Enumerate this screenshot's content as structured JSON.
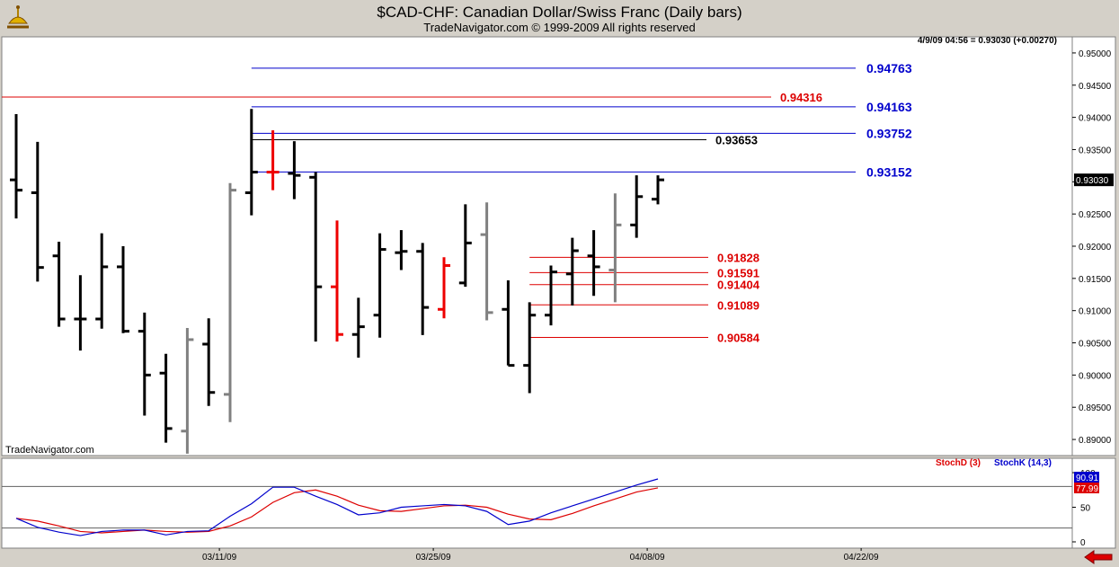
{
  "header": {
    "title": "$CAD-CHF:  Canadian Dollar/Swiss Franc  (Daily bars)",
    "subtitle": "TradeNavigator.com © 1999-2009 All rights reserved",
    "logo_icon": "sextant-icon"
  },
  "watermark": "TradeNavigator.com",
  "quote_line": "4/9/09 04:56 = 0.93030 (+0.00270)",
  "colors": {
    "background": "#d4d0c8",
    "panel": "#ffffff",
    "up_bar": "#000000",
    "red_bar": "#ee0000",
    "gray_bar": "#808080",
    "blue_level": "#0000cc",
    "red_level": "#dd0000",
    "stochK": "#0000cc",
    "stochD": "#dd0000",
    "arrow": "#dd0000"
  },
  "chart_data": [
    {
      "type": "ohlc",
      "ylim": [
        0.8875,
        0.9525
      ],
      "yticks": [
        "0.95000",
        "0.94500",
        "0.94000",
        "0.93500",
        "0.93000",
        "0.92500",
        "0.92000",
        "0.91500",
        "0.91000",
        "0.90500",
        "0.90000",
        "0.89500",
        "0.89000"
      ],
      "ytick_values": [
        0.95,
        0.945,
        0.94,
        0.935,
        0.93,
        0.925,
        0.92,
        0.915,
        0.91,
        0.905,
        0.9,
        0.895,
        0.89
      ],
      "last_price_label": "0.93030",
      "last_price": 0.9303,
      "x_dates": [
        "03/11/09",
        "03/25/09",
        "04/08/09",
        "04/22/09"
      ],
      "x_date_bar_index": [
        9.5,
        19.5,
        29.5,
        39.5
      ],
      "bars": [
        {
          "o": 0.9303,
          "h": 0.9405,
          "l": 0.9243,
          "c": 0.9287,
          "color": "black"
        },
        {
          "o": 0.9283,
          "h": 0.9362,
          "l": 0.9145,
          "c": 0.9167,
          "color": "black"
        },
        {
          "o": 0.9185,
          "h": 0.9207,
          "l": 0.9075,
          "c": 0.9087,
          "color": "black"
        },
        {
          "o": 0.9087,
          "h": 0.9155,
          "l": 0.9038,
          "c": 0.9087,
          "color": "black"
        },
        {
          "o": 0.9087,
          "h": 0.922,
          "l": 0.9072,
          "c": 0.9168,
          "color": "black"
        },
        {
          "o": 0.9168,
          "h": 0.92,
          "l": 0.9065,
          "c": 0.9068,
          "color": "black"
        },
        {
          "o": 0.9068,
          "h": 0.9097,
          "l": 0.8937,
          "c": 0.9,
          "color": "black"
        },
        {
          "o": 0.9003,
          "h": 0.9033,
          "l": 0.8895,
          "c": 0.8917,
          "color": "black"
        },
        {
          "o": 0.8913,
          "h": 0.9073,
          "l": 0.8878,
          "c": 0.9055,
          "color": "gray"
        },
        {
          "o": 0.9048,
          "h": 0.9088,
          "l": 0.8952,
          "c": 0.8973,
          "color": "black"
        },
        {
          "o": 0.897,
          "h": 0.9298,
          "l": 0.8927,
          "c": 0.9287,
          "color": "gray"
        },
        {
          "o": 0.9283,
          "h": 0.9413,
          "l": 0.9248,
          "c": 0.9315,
          "color": "black"
        },
        {
          "o": 0.9315,
          "h": 0.938,
          "l": 0.9287,
          "c": 0.9315,
          "color": "red"
        },
        {
          "o": 0.9313,
          "h": 0.9363,
          "l": 0.9273,
          "c": 0.931,
          "color": "black"
        },
        {
          "o": 0.9307,
          "h": 0.9315,
          "l": 0.9052,
          "c": 0.9137,
          "color": "black"
        },
        {
          "o": 0.9137,
          "h": 0.924,
          "l": 0.9052,
          "c": 0.9063,
          "color": "red"
        },
        {
          "o": 0.9063,
          "h": 0.912,
          "l": 0.9027,
          "c": 0.9075,
          "color": "black"
        },
        {
          "o": 0.9093,
          "h": 0.922,
          "l": 0.9058,
          "c": 0.9195,
          "color": "black"
        },
        {
          "o": 0.919,
          "h": 0.9225,
          "l": 0.9163,
          "c": 0.9192,
          "color": "black"
        },
        {
          "o": 0.9192,
          "h": 0.9205,
          "l": 0.9062,
          "c": 0.9105,
          "color": "black"
        },
        {
          "o": 0.9102,
          "h": 0.9183,
          "l": 0.9088,
          "c": 0.917,
          "color": "red"
        },
        {
          "o": 0.9143,
          "h": 0.9265,
          "l": 0.9137,
          "c": 0.9205,
          "color": "black"
        },
        {
          "o": 0.9218,
          "h": 0.9268,
          "l": 0.9085,
          "c": 0.9097,
          "color": "gray"
        },
        {
          "o": 0.9102,
          "h": 0.9147,
          "l": 0.9015,
          "c": 0.9015,
          "color": "black"
        },
        {
          "o": 0.9015,
          "h": 0.9113,
          "l": 0.8972,
          "c": 0.9093,
          "color": "black"
        },
        {
          "o": 0.9093,
          "h": 0.917,
          "l": 0.9077,
          "c": 0.916,
          "color": "black"
        },
        {
          "o": 0.9157,
          "h": 0.9213,
          "l": 0.9108,
          "c": 0.9193,
          "color": "black"
        },
        {
          "o": 0.9185,
          "h": 0.9225,
          "l": 0.9123,
          "c": 0.9168,
          "color": "black"
        },
        {
          "o": 0.9163,
          "h": 0.9282,
          "l": 0.9113,
          "c": 0.9233,
          "color": "gray"
        },
        {
          "o": 0.9233,
          "h": 0.931,
          "l": 0.9213,
          "c": 0.9277,
          "color": "black"
        },
        {
          "o": 0.9273,
          "h": 0.931,
          "l": 0.9265,
          "c": 0.9303,
          "color": "black"
        }
      ],
      "levels": [
        {
          "value": 0.94763,
          "label": "0.94763",
          "color": "blue",
          "start_bar": 11
        },
        {
          "value": 0.94316,
          "label": "0.94316",
          "color": "red",
          "start_bar": -1
        },
        {
          "value": 0.94163,
          "label": "0.94163",
          "color": "blue",
          "start_bar": 11
        },
        {
          "value": 0.93752,
          "label": "0.93752",
          "color": "blue",
          "start_bar": 11
        },
        {
          "value": 0.93653,
          "label": "0.93653",
          "color": "black",
          "start_bar": 11
        },
        {
          "value": 0.93152,
          "label": "0.93152",
          "color": "blue",
          "start_bar": 11
        },
        {
          "value": 0.91828,
          "label": "0.91828",
          "color": "red",
          "start_bar": 24
        },
        {
          "value": 0.91591,
          "label": "0.91591",
          "color": "red",
          "start_bar": 24
        },
        {
          "value": 0.91404,
          "label": "0.91404",
          "color": "red",
          "start_bar": 24
        },
        {
          "value": 0.91089,
          "label": "0.91089",
          "color": "red",
          "start_bar": 24
        },
        {
          "value": 0.90584,
          "label": "0.90584",
          "color": "red",
          "start_bar": 24
        }
      ]
    },
    {
      "type": "line",
      "ylim": [
        0,
        100
      ],
      "yticks": [
        "100",
        "50",
        "0"
      ],
      "ytick_values": [
        100,
        50,
        0
      ],
      "reference_lines": [
        80,
        20
      ],
      "legend": [
        {
          "name": "StochD (3)",
          "color": "red"
        },
        {
          "name": "StochK (14,3)",
          "color": "blue"
        }
      ],
      "value_labels": [
        {
          "label": "90.91",
          "value": 90.91,
          "color": "blue"
        },
        {
          "label": "77.99",
          "value": 77.99,
          "color": "red"
        }
      ],
      "series": [
        {
          "name": "StochK (14,3)",
          "color": "blue",
          "values": [
            34,
            21,
            14,
            9,
            15,
            17,
            17,
            10,
            15,
            16,
            37,
            55,
            79,
            79,
            66,
            54,
            39,
            42,
            50,
            52,
            54,
            52,
            44,
            25,
            30,
            42,
            52,
            62,
            72,
            82,
            90.91
          ]
        },
        {
          "name": "StochD (3)",
          "color": "red",
          "values": [
            34,
            30,
            23,
            15,
            13,
            15,
            17,
            15,
            14,
            15,
            23,
            36,
            57,
            71,
            75,
            66,
            53,
            45,
            44,
            48,
            52,
            53,
            50,
            40,
            33,
            32,
            41,
            52,
            62,
            72,
            77.99
          ]
        }
      ]
    }
  ]
}
